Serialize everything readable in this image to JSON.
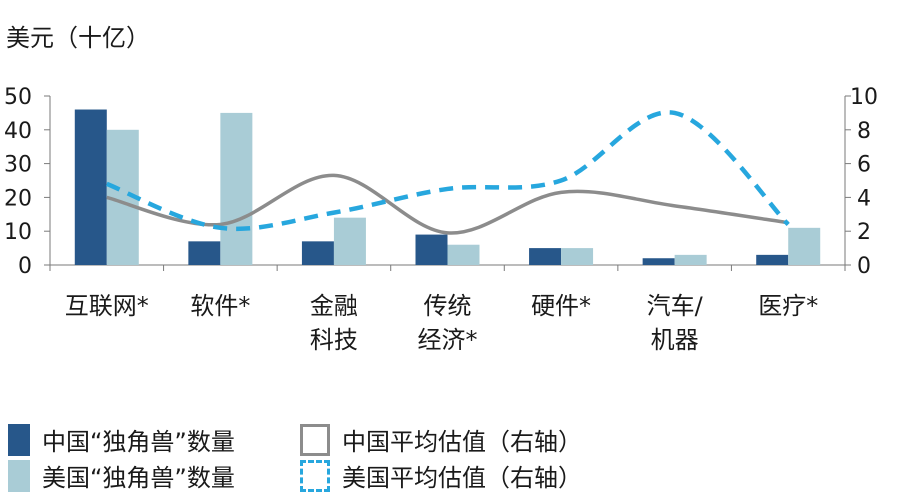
{
  "chart_data": {
    "type": "bar",
    "unit_label": "美元（十亿）",
    "categories": [
      [
        "互联网*"
      ],
      [
        "软件*"
      ],
      [
        "金融",
        "科技"
      ],
      [
        "传统",
        "经济*"
      ],
      [
        "硬件*"
      ],
      [
        "汽车/",
        "机器"
      ],
      [
        "医疗*"
      ]
    ],
    "left_axis": {
      "ylim": [
        0,
        50
      ],
      "ticks": [
        0,
        10,
        20,
        30,
        40,
        50
      ]
    },
    "right_axis": {
      "ylim": [
        0,
        10
      ],
      "ticks": [
        0,
        2,
        4,
        6,
        8,
        10
      ]
    },
    "series": [
      {
        "name": "中国“独角兽”数量",
        "type": "bar",
        "axis": "left",
        "color": "#27578a",
        "values": [
          46,
          7,
          7,
          9,
          5,
          2,
          3
        ]
      },
      {
        "name": "美国“独角兽”数量",
        "type": "bar",
        "axis": "left",
        "color": "#a9ccd6",
        "values": [
          40,
          45,
          14,
          6,
          5,
          3,
          11
        ]
      },
      {
        "name": "中国平均估值（右轴）",
        "type": "line",
        "axis": "right",
        "color": "#8c8c8c",
        "dash": false,
        "values": [
          4.0,
          2.4,
          5.3,
          1.9,
          4.3,
          3.5,
          2.5
        ]
      },
      {
        "name": "美国平均估值（右轴）",
        "type": "line",
        "axis": "right",
        "color": "#27a7de",
        "dash": true,
        "values": [
          4.8,
          2.2,
          3.1,
          4.5,
          5.0,
          9.0,
          2.4
        ]
      }
    ],
    "grid": false,
    "legend_position": "bottom-left"
  }
}
